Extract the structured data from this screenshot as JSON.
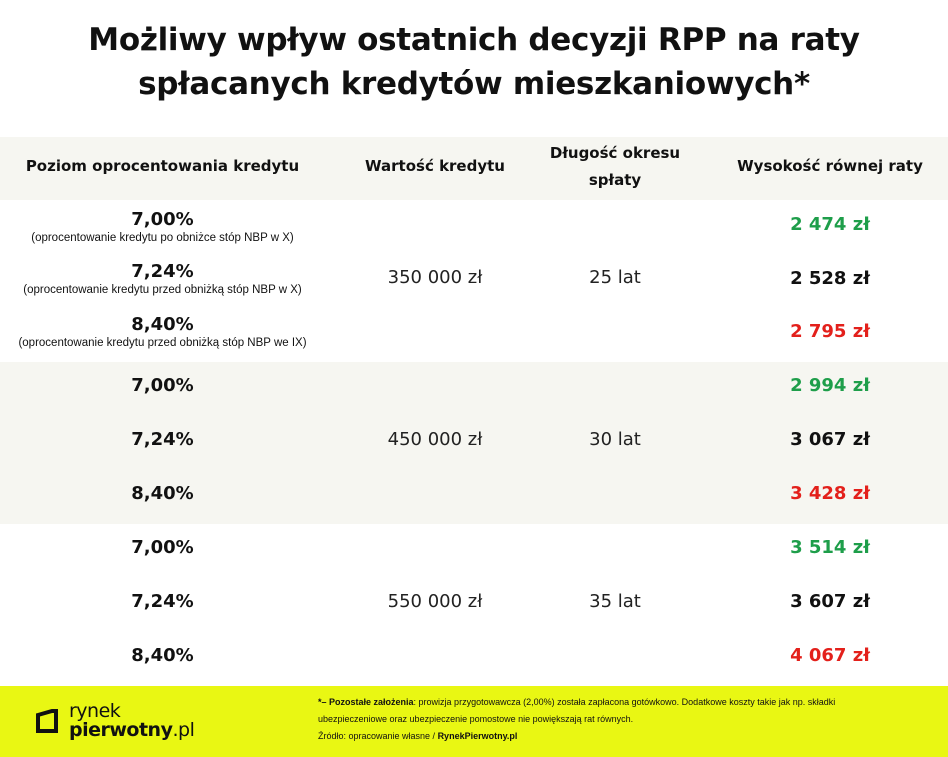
{
  "title": {
    "line1": "Możliwy wpływ ostatnich decyzji RPP na raty",
    "line2": "spłacanych kredytów mieszkaniowych*"
  },
  "table": {
    "headers": {
      "rate": "Poziom oprocentowania kredytu",
      "amount": "Wartość kredytu",
      "term_line1": "Długość okresu",
      "term_line2": "spłaty",
      "installment": "Wysokość równej raty"
    },
    "groups": [
      {
        "amount": "350 000 zł",
        "term": "25 lat",
        "rows": [
          {
            "rate": "7,00%",
            "note": "(oprocentowanie kredytu po obniżce stóp NBP w X)",
            "installment": "2 474 zł"
          },
          {
            "rate": "7,24%",
            "note": "(oprocentowanie kredytu przed obniżką stóp NBP w X)",
            "installment": "2 528 zł"
          },
          {
            "rate": "8,40%",
            "note": "(oprocentowanie kredytu przed obniżką stóp NBP we IX)",
            "installment": "2 795 zł"
          }
        ]
      },
      {
        "amount": "450 000 zł",
        "term": "30 lat",
        "rows": [
          {
            "rate": "7,00%",
            "installment": "2 994 zł"
          },
          {
            "rate": "7,24%",
            "installment": "3 067 zł"
          },
          {
            "rate": "8,40%",
            "installment": "3 428 zł"
          }
        ]
      },
      {
        "amount": "550 000 zł",
        "term": "35 lat",
        "rows": [
          {
            "rate": "7,00%",
            "installment": "3 514 zł"
          },
          {
            "rate": "7,24%",
            "installment": "3 607 zł"
          },
          {
            "rate": "8,40%",
            "installment": "4 067 zł"
          }
        ]
      }
    ]
  },
  "colors": {
    "lower": "#1e9e4a",
    "base": "#111111",
    "higher": "#e3201b",
    "footer_bg": "#e9f713",
    "row_shade": "#f6f6f1"
  },
  "footer": {
    "logo_line1": "rynek",
    "logo_line2_bold": "pierwotny",
    "logo_line2_suffix": ".pl",
    "assumptions_label": "*– Pozostałe założenia",
    "assumptions_text1": ": prowizja przygotowawcza (2,00%) została zapłacona gotówkowo. Dodatkowe koszty takie jak np. składki",
    "assumptions_text2": "ubezpieczeniowe oraz ubezpieczenie pomostowe nie powiększają rat równych.",
    "source_label": "Źródło: opracowanie własne / ",
    "source_name": "RynekPierwotny.pl"
  }
}
